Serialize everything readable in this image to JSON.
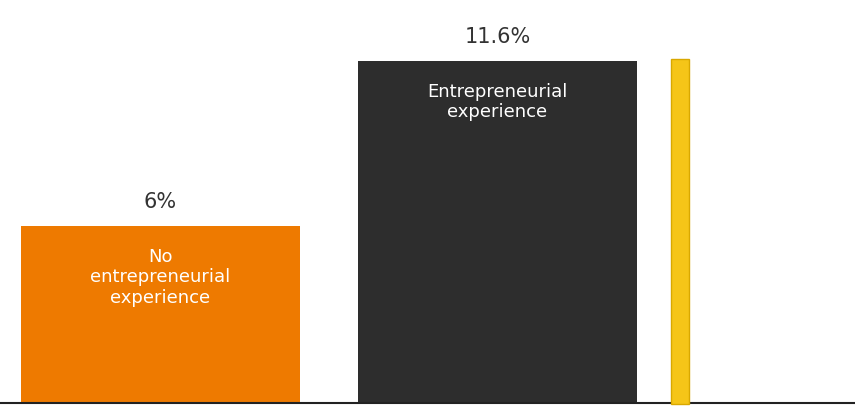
{
  "chart_data": {
    "type": "bar",
    "categories": [
      "No entrepreneurial experience",
      "Entrepreneurial experience"
    ],
    "values": [
      6,
      11.6
    ],
    "value_labels": [
      "6%",
      "11.6%"
    ],
    "colors": [
      "#EE7A00",
      "#2D2D2D"
    ],
    "ylim": [
      0,
      13.6
    ],
    "data_labels": true,
    "tick_labels": false,
    "grid": false
  }
}
